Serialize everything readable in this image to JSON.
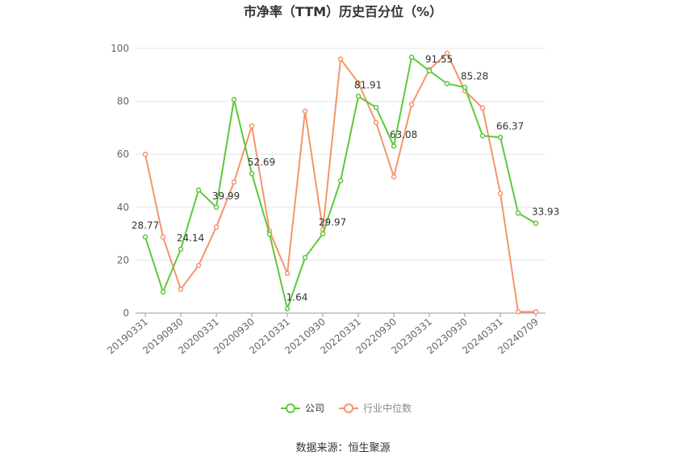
{
  "chart_data": {
    "type": "line",
    "title": "市净率（TTM）历史百分位（%）",
    "source": "数据来源：恒生聚源",
    "categories": [
      "20190331",
      null,
      "20190930",
      null,
      "20200331",
      null,
      "20200930",
      null,
      "20210331",
      null,
      "20210930",
      null,
      "20220331",
      null,
      "20220930",
      null,
      "20230331",
      null,
      "20230930",
      null,
      "20240331",
      null,
      "20240709"
    ],
    "series": [
      {
        "name": "公司",
        "color": "#5cc93a",
        "values": [
          28.77,
          8,
          24.14,
          46.5,
          39.99,
          80.7,
          52.69,
          29.8,
          1.64,
          21,
          29.97,
          50,
          81.91,
          77.7,
          63.08,
          96.7,
          91.55,
          86.7,
          85.28,
          67,
          66.37,
          37.8,
          33.93
        ]
      },
      {
        "name": "行业中位数",
        "color": "#f4956a",
        "values": [
          60,
          28.7,
          9,
          18,
          32.5,
          49.5,
          70.7,
          31,
          15,
          76.3,
          31.5,
          96,
          87,
          72,
          51.5,
          78.8,
          92,
          98.2,
          84,
          77.5,
          45.2,
          0.5,
          0.5
        ]
      }
    ],
    "ylim": [
      0,
      100
    ],
    "yticks": [
      0,
      20,
      40,
      60,
      80,
      100
    ],
    "grid": true
  }
}
